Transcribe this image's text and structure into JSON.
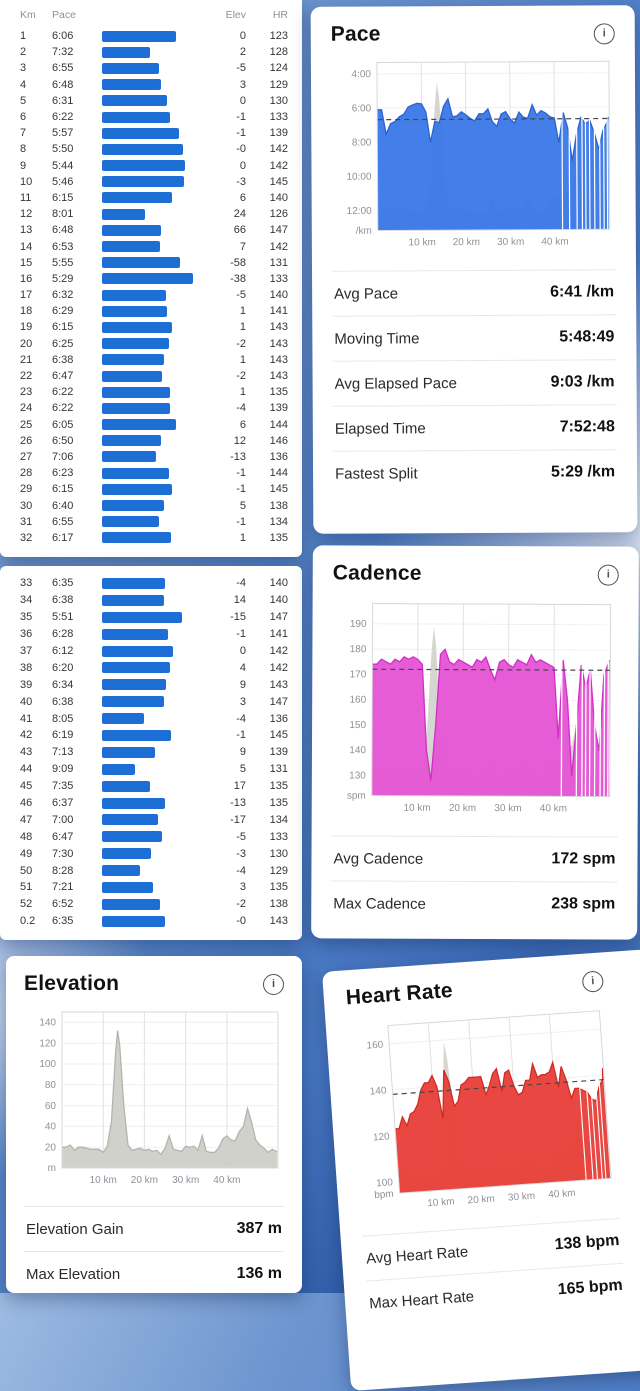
{
  "icons": {
    "info": "i"
  },
  "colors": {
    "split_bar": "#1d6fd6",
    "pace": "#3b79e8",
    "cadence": "#e455d4",
    "elevation": "#cfcfc9",
    "heart_rate": "#e8413a"
  },
  "splits": {
    "headers": [
      "Km",
      "Pace",
      "Elev",
      "HR"
    ],
    "page1_rows": [
      [
        "1",
        "6:06",
        "0",
        "123"
      ],
      [
        "2",
        "7:32",
        "2",
        "128"
      ],
      [
        "3",
        "6:55",
        "-5",
        "124"
      ],
      [
        "4",
        "6:48",
        "3",
        "129"
      ],
      [
        "5",
        "6:31",
        "0",
        "130"
      ],
      [
        "6",
        "6:22",
        "-1",
        "133"
      ],
      [
        "7",
        "5:57",
        "-1",
        "139"
      ],
      [
        "8",
        "5:50",
        "-0",
        "142"
      ],
      [
        "9",
        "5:44",
        "0",
        "142"
      ],
      [
        "10",
        "5:46",
        "-3",
        "145"
      ],
      [
        "11",
        "6:15",
        "6",
        "140"
      ],
      [
        "12",
        "8:01",
        "24",
        "126"
      ],
      [
        "13",
        "6:48",
        "66",
        "147"
      ],
      [
        "14",
        "6:53",
        "7",
        "142"
      ],
      [
        "15",
        "5:55",
        "-58",
        "131"
      ],
      [
        "16",
        "5:29",
        "-38",
        "133"
      ],
      [
        "17",
        "6:32",
        "-5",
        "140"
      ],
      [
        "18",
        "6:29",
        "1",
        "141"
      ],
      [
        "19",
        "6:15",
        "1",
        "143"
      ],
      [
        "20",
        "6:25",
        "-2",
        "143"
      ],
      [
        "21",
        "6:38",
        "1",
        "143"
      ],
      [
        "22",
        "6:47",
        "-2",
        "143"
      ],
      [
        "23",
        "6:22",
        "1",
        "135"
      ],
      [
        "24",
        "6:22",
        "-4",
        "139"
      ],
      [
        "25",
        "6:05",
        "6",
        "144"
      ],
      [
        "26",
        "6:50",
        "12",
        "146"
      ],
      [
        "27",
        "7:06",
        "-13",
        "136"
      ],
      [
        "28",
        "6:23",
        "-1",
        "144"
      ],
      [
        "29",
        "6:15",
        "-1",
        "145"
      ],
      [
        "30",
        "6:40",
        "5",
        "138"
      ],
      [
        "31",
        "6:55",
        "-1",
        "134"
      ],
      [
        "32",
        "6:17",
        "1",
        "135"
      ]
    ],
    "page2_rows": [
      [
        "33",
        "6:35",
        "-4",
        "140"
      ],
      [
        "34",
        "6:38",
        "14",
        "140"
      ],
      [
        "35",
        "5:51",
        "-15",
        "147"
      ],
      [
        "36",
        "6:28",
        "-1",
        "141"
      ],
      [
        "37",
        "6:12",
        "0",
        "142"
      ],
      [
        "38",
        "6:20",
        "4",
        "142"
      ],
      [
        "39",
        "6:34",
        "9",
        "143"
      ],
      [
        "40",
        "6:38",
        "3",
        "147"
      ],
      [
        "41",
        "8:05",
        "-4",
        "136"
      ],
      [
        "42",
        "6:19",
        "-1",
        "145"
      ],
      [
        "43",
        "7:13",
        "9",
        "139"
      ],
      [
        "44",
        "9:09",
        "5",
        "131"
      ],
      [
        "45",
        "7:35",
        "17",
        "135"
      ],
      [
        "46",
        "6:37",
        "-13",
        "135"
      ],
      [
        "47",
        "7:00",
        "-17",
        "134"
      ],
      [
        "48",
        "6:47",
        "-5",
        "133"
      ],
      [
        "49",
        "7:30",
        "-3",
        "130"
      ],
      [
        "50",
        "8:28",
        "-4",
        "129"
      ],
      [
        "51",
        "7:21",
        "3",
        "135"
      ],
      [
        "52",
        "6:52",
        "-2",
        "138"
      ],
      [
        "0.2",
        "6:35",
        "-0",
        "143"
      ]
    ]
  },
  "cards": {
    "pace": {
      "title": "Pace",
      "stats": [
        {
          "label": "Avg Pace",
          "value": "6:41 /km"
        },
        {
          "label": "Moving Time",
          "value": "5:48:49"
        },
        {
          "label": "Avg Elapsed Pace",
          "value": "9:03 /km"
        },
        {
          "label": "Elapsed Time",
          "value": "7:52:48"
        },
        {
          "label": "Fastest Split",
          "value": "5:29 /km"
        }
      ]
    },
    "cadence": {
      "title": "Cadence",
      "stats": [
        {
          "label": "Avg Cadence",
          "value": "172 spm"
        },
        {
          "label": "Max Cadence",
          "value": "238 spm"
        }
      ]
    },
    "elevation": {
      "title": "Elevation",
      "stats": [
        {
          "label": "Elevation Gain",
          "value": "387 m"
        },
        {
          "label": "Max Elevation",
          "value": "136 m"
        }
      ]
    },
    "heart_rate": {
      "title": "Heart Rate",
      "stats": [
        {
          "label": "Avg Heart Rate",
          "value": "138 bpm"
        },
        {
          "label": "Max Heart Rate",
          "value": "165 bpm"
        }
      ]
    }
  },
  "chart_data": [
    {
      "id": "pace",
      "type": "area",
      "title": "Pace",
      "unit": "/km",
      "fill": "#3b79e8",
      "line": "#2d63d2",
      "x_domain": [
        0,
        52.4
      ],
      "y_domain": [
        200,
        790
      ],
      "inverted": true,
      "x_km": [
        1,
        2,
        3,
        4,
        5,
        6,
        7,
        8,
        9,
        10,
        11,
        12,
        13,
        14,
        15,
        16,
        17,
        18,
        19,
        20,
        21,
        22,
        23,
        24,
        25,
        26,
        27,
        28,
        29,
        30,
        31,
        32,
        33,
        34,
        35,
        36,
        37,
        38,
        39,
        40,
        41,
        42,
        43,
        44,
        45,
        46,
        47,
        48,
        49,
        50,
        51,
        52,
        52.2
      ],
      "values": [
        366,
        452,
        415,
        408,
        391,
        382,
        357,
        350,
        344,
        346,
        375,
        481,
        408,
        413,
        355,
        329,
        392,
        389,
        375,
        385,
        398,
        407,
        382,
        382,
        365,
        410,
        426,
        383,
        375,
        400,
        415,
        377,
        395,
        398,
        351,
        388,
        372,
        380,
        394,
        398,
        485,
        379,
        433,
        549,
        455,
        397,
        420,
        407,
        450,
        508,
        441,
        412,
        395
      ],
      "y_ticks": [
        {
          "v": 240,
          "label": "4:00"
        },
        {
          "v": 360,
          "label": "6:00"
        },
        {
          "v": 480,
          "label": "8:00"
        },
        {
          "v": 600,
          "label": "10:00"
        },
        {
          "v": 720,
          "label": "12:00"
        }
      ],
      "x_ticks": [
        {
          "v": 10,
          "label": "10 km"
        },
        {
          "v": 20,
          "label": "20 km"
        },
        {
          "v": 30,
          "label": "30 km"
        },
        {
          "v": 40,
          "label": "40 km"
        }
      ],
      "avg_line": 401,
      "avg_label": "6:41 /km",
      "overlay": "elevation",
      "pause_gaps_km": [
        41.6,
        43.2,
        44.9,
        46.1,
        46.9,
        47.8,
        48.9,
        50.1,
        51.0,
        51.8
      ]
    },
    {
      "id": "cadence",
      "type": "area",
      "title": "Cadence",
      "unit": "spm",
      "fill": "#e455d4",
      "line": "#d12ec6",
      "x_domain": [
        0,
        52.4
      ],
      "y_domain": [
        122,
        198
      ],
      "inverted": false,
      "x_km": [
        1,
        2,
        3,
        4,
        5,
        6,
        7,
        8,
        9,
        10,
        11,
        12,
        13,
        14,
        15,
        16,
        17,
        18,
        19,
        20,
        21,
        22,
        23,
        24,
        25,
        26,
        27,
        28,
        29,
        30,
        31,
        32,
        33,
        34,
        35,
        36,
        37,
        38,
        39,
        40,
        41,
        42,
        43,
        44,
        45,
        46,
        47,
        48,
        49,
        50,
        51,
        52,
        52.2
      ],
      "values": [
        174,
        176,
        175,
        174,
        176,
        175,
        177,
        176,
        177,
        176,
        174,
        140,
        128,
        150,
        178,
        180,
        175,
        174,
        176,
        175,
        174,
        173,
        176,
        175,
        177,
        172,
        168,
        175,
        176,
        174,
        173,
        176,
        175,
        174,
        178,
        175,
        176,
        175,
        174,
        173,
        145,
        176,
        160,
        130,
        150,
        174,
        165,
        172,
        150,
        140,
        170,
        175,
        176
      ],
      "y_ticks": [
        {
          "v": 190,
          "label": "190"
        },
        {
          "v": 180,
          "label": "180"
        },
        {
          "v": 170,
          "label": "170"
        },
        {
          "v": 160,
          "label": "160"
        },
        {
          "v": 150,
          "label": "150"
        },
        {
          "v": 140,
          "label": "140"
        },
        {
          "v": 130,
          "label": "130"
        }
      ],
      "x_ticks": [
        {
          "v": 10,
          "label": "10 km"
        },
        {
          "v": 20,
          "label": "20 km"
        },
        {
          "v": 30,
          "label": "30 km"
        },
        {
          "v": 40,
          "label": "40 km"
        }
      ],
      "avg_line": 172,
      "avg_label": "172 spm",
      "overlay": "elevation",
      "pause_gaps_km": [
        41.6,
        44.9,
        46.1,
        46.9,
        47.8,
        48.9,
        50.1,
        51.0,
        51.8
      ]
    },
    {
      "id": "elevation",
      "type": "area",
      "title": "Elevation",
      "unit": "m",
      "fill": "#cfcfc9",
      "line": "#b4b4ae",
      "x_domain": [
        0,
        52.4
      ],
      "y_domain": [
        0,
        150
      ],
      "inverted": false,
      "x_km": [
        0,
        1,
        2,
        3,
        4,
        5,
        6,
        7,
        8,
        9,
        10,
        11,
        12,
        13,
        13.5,
        14,
        15,
        16,
        17,
        18,
        19,
        20,
        21,
        22,
        23,
        24,
        25,
        26,
        27,
        28,
        29,
        30,
        31,
        32,
        33,
        34,
        35,
        36,
        37,
        38,
        39,
        40,
        41,
        42,
        43,
        44,
        45,
        46,
        47,
        48,
        49,
        50,
        51,
        52,
        52.2
      ],
      "values": [
        20,
        20,
        22,
        17,
        20,
        20,
        19,
        18,
        18,
        18,
        15,
        21,
        45,
        111,
        132,
        118,
        60,
        22,
        17,
        18,
        19,
        17,
        18,
        16,
        17,
        13,
        19,
        31,
        18,
        17,
        16,
        21,
        20,
        21,
        17,
        31,
        16,
        15,
        15,
        19,
        28,
        31,
        27,
        26,
        35,
        40,
        57,
        44,
        27,
        22,
        19,
        15,
        18,
        16,
        16
      ],
      "y_ticks": [
        {
          "v": 140,
          "label": "140"
        },
        {
          "v": 120,
          "label": "120"
        },
        {
          "v": 100,
          "label": "100"
        },
        {
          "v": 80,
          "label": "80"
        },
        {
          "v": 60,
          "label": "60"
        },
        {
          "v": 40,
          "label": "40"
        },
        {
          "v": 20,
          "label": "20"
        }
      ],
      "x_ticks": [
        {
          "v": 10,
          "label": "10 km"
        },
        {
          "v": 20,
          "label": "20 km"
        },
        {
          "v": 30,
          "label": "30 km"
        },
        {
          "v": 40,
          "label": "40 km"
        }
      ]
    },
    {
      "id": "heart_rate",
      "type": "area",
      "title": "Heart Rate",
      "unit": "bpm",
      "fill": "#e8413a",
      "line": "#d02c26",
      "x_domain": [
        0,
        52.4
      ],
      "y_domain": [
        95,
        168
      ],
      "inverted": false,
      "x_km": [
        1,
        2,
        3,
        4,
        5,
        6,
        7,
        8,
        9,
        10,
        11,
        12,
        13,
        14,
        15,
        16,
        17,
        18,
        19,
        20,
        21,
        22,
        23,
        24,
        25,
        26,
        27,
        28,
        29,
        30,
        31,
        32,
        33,
        34,
        35,
        36,
        37,
        38,
        39,
        40,
        41,
        42,
        43,
        44,
        45,
        46,
        47,
        48,
        49,
        50,
        51,
        52,
        52.2
      ],
      "values": [
        123,
        128,
        124,
        129,
        130,
        133,
        139,
        142,
        142,
        145,
        140,
        126,
        147,
        142,
        131,
        133,
        140,
        141,
        143,
        143,
        143,
        143,
        135,
        139,
        144,
        146,
        136,
        144,
        145,
        138,
        134,
        135,
        140,
        140,
        147,
        141,
        142,
        142,
        143,
        147,
        136,
        145,
        139,
        131,
        135,
        135,
        134,
        133,
        130,
        129,
        135,
        138,
        143
      ],
      "y_ticks": [
        {
          "v": 160,
          "label": "160"
        },
        {
          "v": 140,
          "label": "140"
        },
        {
          "v": 120,
          "label": "120"
        },
        {
          "v": 100,
          "label": "100"
        }
      ],
      "x_ticks": [
        {
          "v": 10,
          "label": "10 km"
        },
        {
          "v": 20,
          "label": "20 km"
        },
        {
          "v": 30,
          "label": "30 km"
        },
        {
          "v": 40,
          "label": "40 km"
        }
      ],
      "avg_line": 138,
      "avg_label": "138 bpm",
      "overlay": "elevation",
      "pause_gaps_km": [
        46.1,
        47.8,
        48.9,
        50.1,
        51.0
      ]
    }
  ]
}
